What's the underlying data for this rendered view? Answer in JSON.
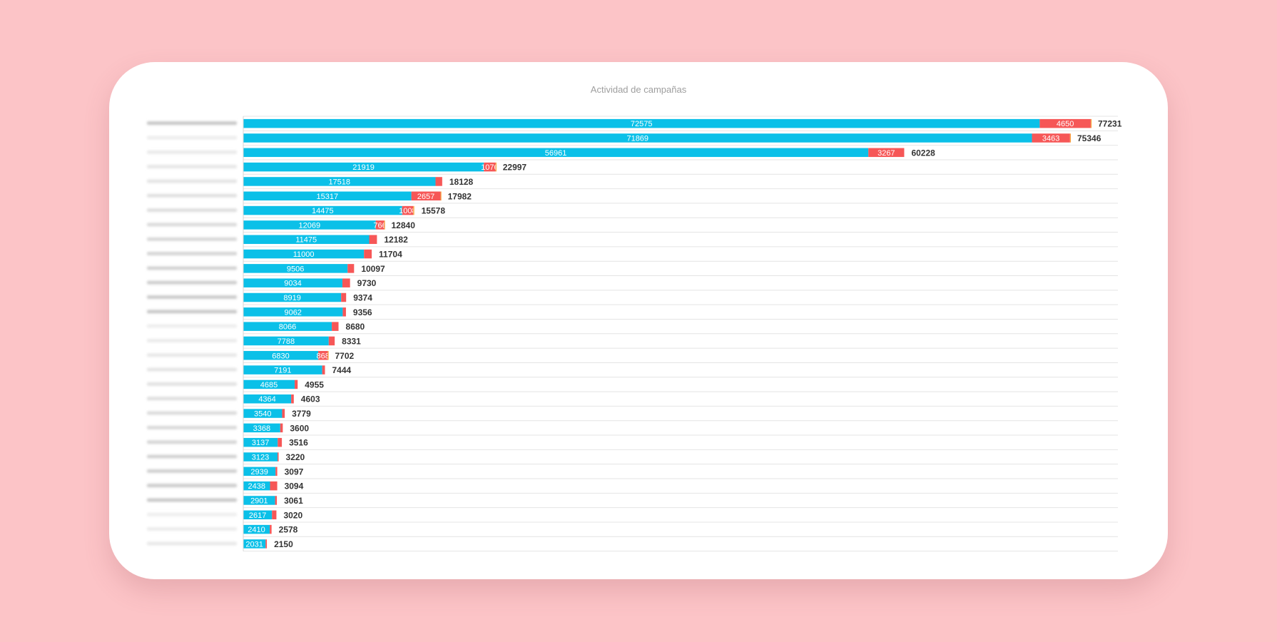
{
  "chart_data": {
    "type": "bar",
    "orientation": "horizontal",
    "stacked": true,
    "title": "Actividad de campañas",
    "xlim": [
      0,
      80000
    ],
    "grid": true,
    "legend": "none",
    "colors": {
      "primary": "#0bc0e8",
      "secondary": "#f65757",
      "tertiary": "#f7a23b"
    },
    "series": [
      {
        "values": [
          72575,
          71869,
          56961,
          21919,
          17518,
          15317,
          14475,
          12069,
          11475,
          11000,
          9506,
          9034,
          8919,
          9062,
          8066,
          7788,
          6830,
          7191,
          4685,
          4364,
          3540,
          3368,
          3137,
          3123,
          2939,
          2438,
          2901,
          2617,
          2410,
          2031
        ]
      },
      {
        "values": [
          4650,
          3463,
          3267,
          1076,
          610,
          2657,
          1008,
          766,
          707,
          704,
          591,
          696,
          455,
          294,
          614,
          543,
          868,
          253,
          270,
          239,
          239,
          232,
          379,
          97,
          158,
          656,
          160,
          403,
          168,
          119
        ]
      },
      {
        "values": [
          6,
          14,
          0,
          2,
          0,
          8,
          95,
          5,
          0,
          0,
          0,
          0,
          0,
          0,
          0,
          0,
          4,
          0,
          0,
          0,
          0,
          0,
          0,
          0,
          0,
          0,
          0,
          0,
          0,
          0
        ]
      }
    ],
    "segment_labels": [
      [
        "72575",
        "4650",
        ""
      ],
      [
        "71869",
        "3463",
        ""
      ],
      [
        "56961",
        "3267",
        ""
      ],
      [
        "21919",
        "1076",
        ""
      ],
      [
        "17518",
        "",
        ""
      ],
      [
        "15317",
        "2657",
        ""
      ],
      [
        "14475",
        "1008",
        ""
      ],
      [
        "12069",
        "766",
        ""
      ],
      [
        "11475",
        "",
        ""
      ],
      [
        "11000",
        "",
        ""
      ],
      [
        "9506",
        "",
        ""
      ],
      [
        "9034",
        "",
        ""
      ],
      [
        "8919",
        "",
        ""
      ],
      [
        "9062",
        "",
        ""
      ],
      [
        "8066",
        "",
        ""
      ],
      [
        "7788",
        "",
        ""
      ],
      [
        "6830",
        "868",
        ""
      ],
      [
        "7191",
        "",
        ""
      ],
      [
        "4685",
        "",
        ""
      ],
      [
        "4364",
        "",
        ""
      ],
      [
        "3540",
        "",
        ""
      ],
      [
        "3368",
        "",
        ""
      ],
      [
        "3137",
        "",
        ""
      ],
      [
        "3123",
        "",
        ""
      ],
      [
        "2939",
        "",
        ""
      ],
      [
        "2438",
        "",
        ""
      ],
      [
        "2901",
        "",
        ""
      ],
      [
        "2617",
        "",
        ""
      ],
      [
        "2410",
        "",
        ""
      ],
      [
        "2031",
        "",
        ""
      ]
    ],
    "totals": [
      77231,
      75346,
      60228,
      22997,
      18128,
      17982,
      15578,
      12840,
      12182,
      11704,
      10097,
      9730,
      9374,
      9356,
      8680,
      8331,
      7702,
      7444,
      4955,
      4603,
      3779,
      3600,
      3516,
      3220,
      3097,
      3094,
      3061,
      3020,
      2578,
      2150
    ],
    "total_labels": [
      "77231",
      "75346",
      "60228",
      "22997",
      "18128",
      "17982",
      "15578",
      "12840",
      "12182",
      "11704",
      "10097",
      "9730",
      "9374",
      "9356",
      "8680",
      "8331",
      "7702",
      "7444",
      "4955",
      "4603",
      "3779",
      "3600",
      "3516",
      "3220",
      "3097",
      "3094",
      "3061",
      "3020",
      "2578",
      "2150"
    ]
  }
}
